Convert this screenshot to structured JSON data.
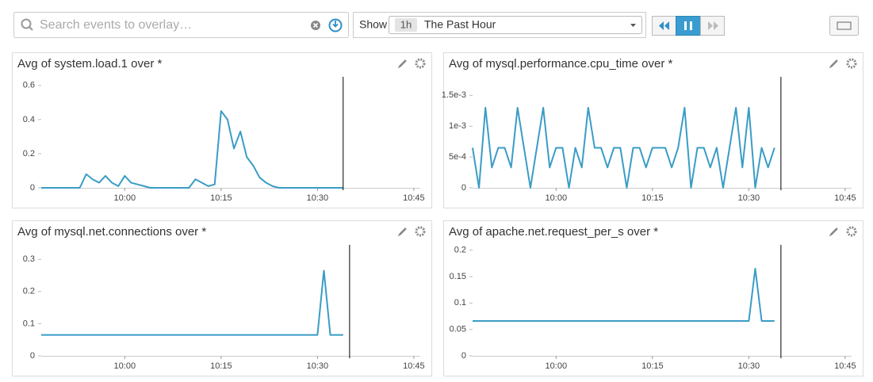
{
  "toolbar": {
    "search_placeholder": "Search events to overlay…",
    "show_label": "Show",
    "timeframe_badge": "1h",
    "timeframe": "The Past Hour"
  },
  "chart_data": [
    {
      "type": "line",
      "title": "Avg of system.load.1 over *",
      "x": [
        "09:47",
        "09:53",
        "09:54",
        "09:55",
        "09:56",
        "09:57",
        "09:58",
        "09:59",
        "10:00",
        "10:01",
        "10:02",
        "10:03",
        "10:04",
        "10:10",
        "10:11",
        "10:12",
        "10:13",
        "10:14",
        "10:15",
        "10:16",
        "10:17",
        "10:18",
        "10:19",
        "10:20",
        "10:21",
        "10:22",
        "10:23",
        "10:24",
        "10:34"
      ],
      "series": [
        {
          "color": "#3a9cc6",
          "values": [
            0,
            0,
            0.08,
            0.05,
            0.03,
            0.07,
            0.03,
            0.01,
            0.07,
            0.03,
            0.02,
            0.01,
            0,
            0,
            0.05,
            0.03,
            0.01,
            0.02,
            0.45,
            0.4,
            0.23,
            0.33,
            0.18,
            0.13,
            0.06,
            0.03,
            0.01,
            0,
            0
          ]
        }
      ],
      "xlim": [
        "09:47",
        "10:46"
      ],
      "xticks": [
        "10:00",
        "10:15",
        "10:30",
        "10:45"
      ],
      "ylim": [
        0,
        0.65
      ],
      "yticks": [
        0,
        0.2,
        0.4,
        0.6
      ],
      "now_marker": "10:34"
    },
    {
      "type": "line",
      "title": "Avg of mysql.performance.cpu_time over *",
      "x": [
        "09:47",
        "09:48",
        "09:49",
        "09:50",
        "09:51",
        "09:52",
        "09:53",
        "09:54",
        "09:55",
        "09:56",
        "09:57",
        "09:58",
        "09:59",
        "10:00",
        "10:01",
        "10:02",
        "10:03",
        "10:04",
        "10:05",
        "10:06",
        "10:07",
        "10:08",
        "10:09",
        "10:10",
        "10:11",
        "10:12",
        "10:13",
        "10:14",
        "10:15",
        "10:16",
        "10:17",
        "10:18",
        "10:19",
        "10:20",
        "10:21",
        "10:22",
        "10:23",
        "10:24",
        "10:25",
        "10:26",
        "10:27",
        "10:28",
        "10:29",
        "10:30",
        "10:31",
        "10:32",
        "10:33",
        "10:34"
      ],
      "series": [
        {
          "color": "#3a9cc6",
          "values": [
            0.00065,
            0,
            0.0013,
            0.00033,
            0.00065,
            0.00065,
            0.00033,
            0.0013,
            0.00065,
            0,
            0.00065,
            0.0013,
            0.00033,
            0.00065,
            0.00065,
            0,
            0.00065,
            0.00033,
            0.0013,
            0.00065,
            0.00065,
            0.00033,
            0.00065,
            0.00065,
            0,
            0.00065,
            0.00065,
            0.00033,
            0.00065,
            0.00065,
            0.00065,
            0.00033,
            0.00065,
            0.0013,
            0,
            0.00065,
            0.00065,
            0.00033,
            0.00065,
            0,
            0.00065,
            0.0013,
            0.00033,
            0.0013,
            0,
            0.00065,
            0.00033,
            0.00065
          ]
        }
      ],
      "xlim": [
        "09:47",
        "10:46"
      ],
      "xticks": [
        "10:00",
        "10:15",
        "10:30",
        "10:45"
      ],
      "ylim": [
        0,
        0.0018
      ],
      "yticks": [
        0,
        {
          "value": 0.0005,
          "label": "5e-4"
        },
        {
          "value": 0.001,
          "label": "1e-3"
        },
        {
          "value": 0.0015,
          "label": "1.5e-3"
        }
      ],
      "now_marker": "10:35"
    },
    {
      "type": "line",
      "title": "Avg of mysql.net.connections over *",
      "x": [
        "09:47",
        "10:30",
        "10:31",
        "10:32",
        "10:34"
      ],
      "series": [
        {
          "color": "#3a9cc6",
          "values": [
            0.065,
            0.065,
            0.265,
            0.065,
            0.065
          ]
        }
      ],
      "xlim": [
        "09:47",
        "10:46"
      ],
      "xticks": [
        "10:00",
        "10:15",
        "10:30",
        "10:45"
      ],
      "ylim": [
        0,
        0.345
      ],
      "yticks": [
        0,
        0.1,
        0.2,
        0.3
      ],
      "now_marker": "10:35"
    },
    {
      "type": "line",
      "title": "Avg of apache.net.request_per_s over *",
      "x": [
        "09:47",
        "10:30",
        "10:31",
        "10:32",
        "10:34"
      ],
      "series": [
        {
          "color": "#3a9cc6",
          "values": [
            0.066,
            0.066,
            0.165,
            0.066,
            0.066
          ]
        }
      ],
      "xlim": [
        "09:47",
        "10:46"
      ],
      "xticks": [
        "10:00",
        "10:15",
        "10:30",
        "10:45"
      ],
      "ylim": [
        0,
        0.21
      ],
      "yticks": [
        0,
        0.05,
        0.1,
        0.15,
        0.2
      ],
      "now_marker": "10:35"
    }
  ]
}
